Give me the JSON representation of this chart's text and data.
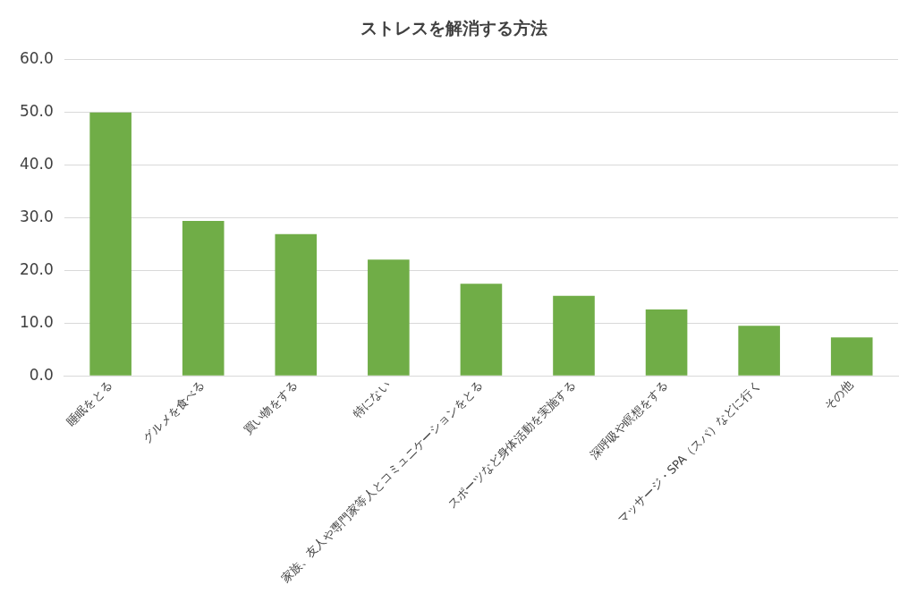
{
  "chart_data": {
    "type": "bar",
    "title": "ストレスを解消する方法",
    "categories": [
      "睡眠をとる",
      "グルメを食べる",
      "買い物をする",
      "特にない",
      "家族、友人や専門家等人とコミュニケーションをとる",
      "スポーツなど身体活動を実施する",
      "深呼吸や瞑想をする",
      "マッサージ・SPA（スパ）などに行く",
      "その他"
    ],
    "values": [
      50.0,
      29.4,
      26.9,
      22.1,
      17.5,
      15.2,
      12.6,
      9.5,
      7.3
    ],
    "color": "#70ad47",
    "ylim": [
      0,
      60
    ],
    "yticks": [
      {
        "value": 0,
        "label": "0.0"
      },
      {
        "value": 10,
        "label": "10.0"
      },
      {
        "value": 20,
        "label": "20.0"
      },
      {
        "value": 30,
        "label": "30.0"
      },
      {
        "value": 40,
        "label": "40.0"
      },
      {
        "value": 50,
        "label": "50.0"
      },
      {
        "value": 60,
        "label": "60.0"
      }
    ],
    "grid": "y"
  }
}
